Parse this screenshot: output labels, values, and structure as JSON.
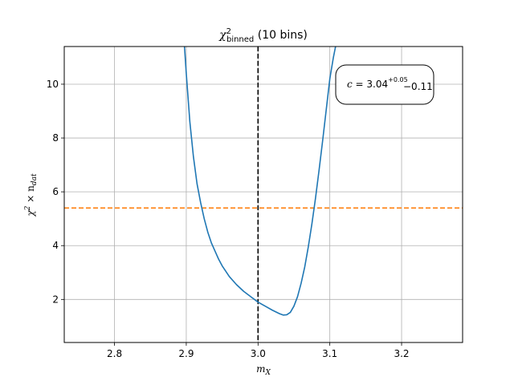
{
  "chart_data": {
    "type": "line",
    "title": "χ²_binned (10 bins)",
    "title_main": "χ",
    "title_sup": "2",
    "title_sub": "binned",
    "title_rest": " (10 bins)",
    "xlabel": "m_X",
    "xlabel_main": "m",
    "xlabel_sub": "X",
    "ylabel": "χ² × n_dat",
    "ylabel_a": "χ",
    "ylabel_sup": "2",
    "ylabel_b": " × n",
    "ylabel_sub": "dat",
    "xlim": [
      2.73,
      3.285
    ],
    "ylim": [
      0.4,
      11.4
    ],
    "grid": true,
    "x_ticks": [
      2.8,
      2.9,
      3.0,
      3.1,
      3.2
    ],
    "x_tick_labels": [
      "2.8",
      "2.9",
      "3.0",
      "3.1",
      "3.2"
    ],
    "y_ticks": [
      2,
      4,
      6,
      8,
      10
    ],
    "y_tick_labels": [
      "2",
      "4",
      "6",
      "8",
      "10"
    ],
    "series": [
      {
        "color": "#1f77b4",
        "x": [
          2.8975,
          2.9,
          2.905,
          2.91,
          2.915,
          2.92,
          2.925,
          2.93,
          2.935,
          2.94,
          2.945,
          2.95,
          2.96,
          2.97,
          2.98,
          2.99,
          3.0,
          3.01,
          3.02,
          3.03,
          3.035,
          3.04,
          3.045,
          3.05,
          3.055,
          3.06,
          3.065,
          3.07,
          3.075,
          3.08,
          3.085,
          3.09,
          3.095,
          3.1,
          3.105,
          3.108
        ],
        "y": [
          11.4,
          10.4,
          8.6,
          7.3,
          6.3,
          5.6,
          5.0,
          4.5,
          4.1,
          3.8,
          3.5,
          3.25,
          2.85,
          2.55,
          2.3,
          2.1,
          1.9,
          1.75,
          1.6,
          1.47,
          1.42,
          1.43,
          1.52,
          1.75,
          2.1,
          2.6,
          3.2,
          3.95,
          4.8,
          5.75,
          6.8,
          7.9,
          9.05,
          10.2,
          11.0,
          11.4
        ]
      }
    ],
    "hlines": [
      {
        "y": 5.4,
        "color": "#ff7f0e",
        "style": "dashed"
      }
    ],
    "vlines": [
      {
        "x": 3.0,
        "color": "#000000",
        "style": "dashed"
      }
    ],
    "annotation": {
      "text": "c = 3.04^{+0.05}_{-0.11}",
      "lhs": "c",
      "eq": " = ",
      "value": "3.04",
      "plus": "+0.05",
      "minus": "−0.11",
      "placement": "top-right"
    }
  }
}
